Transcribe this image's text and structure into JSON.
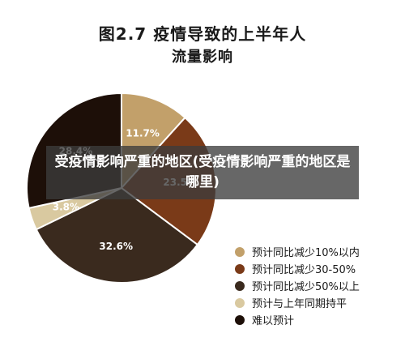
{
  "header": {
    "title_line1": "图2.7 疫情导致的上半年人",
    "title_line2": "流量影响"
  },
  "overlay": {
    "text": "受疫情影响严重的地区(受疫情影响严重的地区是哪里)"
  },
  "chart_data": {
    "type": "pie",
    "title": "图2.7 疫情导致的上半年人流量影响",
    "slices": [
      {
        "label": "预计同比减少10%以内",
        "value": 11.7,
        "display": "11.7%",
        "color": "#c2a06a",
        "text_color": "#ffffff"
      },
      {
        "label": "预计同比减少30-50%",
        "value": 23.5,
        "display": "23.5%",
        "color": "#7a3a18",
        "text_color": "#ffffff"
      },
      {
        "label": "预计同比减少50%以上",
        "value": 32.6,
        "display": "32.6%",
        "color": "#3a2a1e",
        "text_color": "#ffffff"
      },
      {
        "label": "预计与上年同期持平",
        "value": 3.8,
        "display": "3.8%",
        "color": "#d9c9a0",
        "text_color": "#ffffff"
      },
      {
        "label": "难以预计",
        "value": 28.4,
        "display": "28.4%",
        "color": "#1d0f08",
        "text_color": "#ffffff"
      }
    ],
    "start_angle_deg": -90,
    "direction": "clockwise",
    "legend_position": "bottom-right"
  }
}
